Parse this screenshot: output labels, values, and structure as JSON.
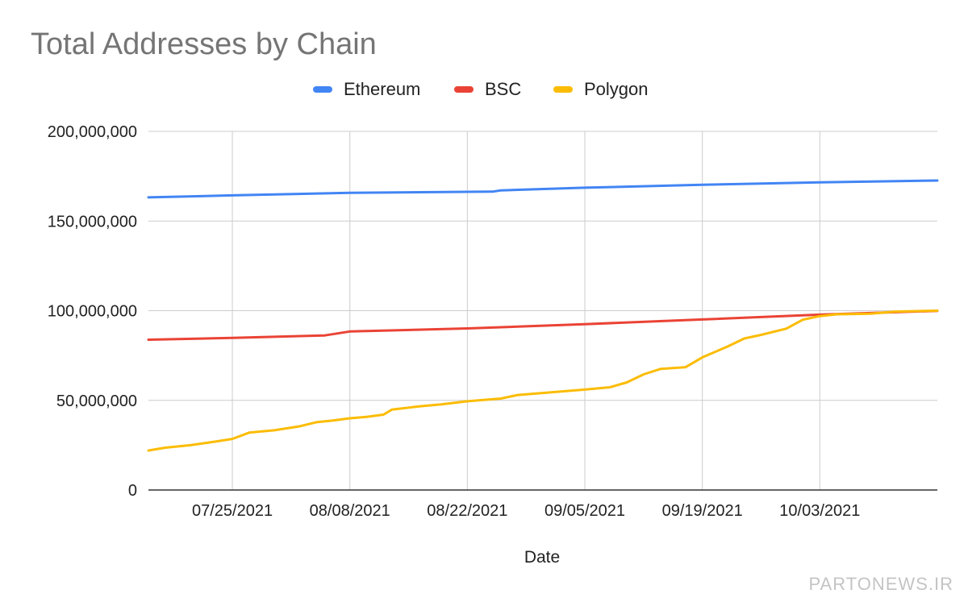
{
  "chart_data": {
    "type": "line",
    "title": "Total Addresses by Chain",
    "xlabel": "Date",
    "ylabel": "",
    "ylim": [
      0,
      200000000
    ],
    "yticks": [
      0,
      50000000,
      100000000,
      150000000,
      200000000
    ],
    "ytick_labels": [
      "0",
      "50,000,000",
      "100,000,000",
      "150,000,000",
      "200,000,000"
    ],
    "xlim": [
      "2021-07-15",
      "2021-10-17"
    ],
    "xticks": [
      "2021-07-25",
      "2021-08-08",
      "2021-08-22",
      "2021-09-05",
      "2021-09-19",
      "2021-10-03"
    ],
    "xtick_labels": [
      "07/25/2021",
      "08/08/2021",
      "08/22/2021",
      "09/05/2021",
      "09/19/2021",
      "10/03/2021"
    ],
    "grid": true,
    "legend_position": "top-center",
    "series": [
      {
        "name": "Ethereum",
        "color": "#4285f4",
        "points": [
          [
            "2021-07-15",
            163200000
          ],
          [
            "2021-07-25",
            164300000
          ],
          [
            "2021-08-08",
            165700000
          ],
          [
            "2021-08-22",
            166300000
          ],
          [
            "2021-08-25",
            166400000
          ],
          [
            "2021-08-26",
            167100000
          ],
          [
            "2021-09-05",
            168600000
          ],
          [
            "2021-09-19",
            170200000
          ],
          [
            "2021-10-03",
            171600000
          ],
          [
            "2021-10-17",
            172600000
          ]
        ]
      },
      {
        "name": "BSC",
        "color": "#ea4335",
        "points": [
          [
            "2021-07-15",
            83800000
          ],
          [
            "2021-07-25",
            84800000
          ],
          [
            "2021-08-05",
            86200000
          ],
          [
            "2021-08-08",
            88400000
          ],
          [
            "2021-08-22",
            90100000
          ],
          [
            "2021-09-05",
            92500000
          ],
          [
            "2021-09-19",
            95100000
          ],
          [
            "2021-10-03",
            97800000
          ],
          [
            "2021-10-17",
            99900000
          ]
        ]
      },
      {
        "name": "Polygon",
        "color": "#fbbc04",
        "points": [
          [
            "2021-07-15",
            22000000
          ],
          [
            "2021-07-17",
            23600000
          ],
          [
            "2021-07-20",
            25000000
          ],
          [
            "2021-07-23",
            27000000
          ],
          [
            "2021-07-25",
            28500000
          ],
          [
            "2021-07-27",
            32000000
          ],
          [
            "2021-07-30",
            33300000
          ],
          [
            "2021-08-02",
            35500000
          ],
          [
            "2021-08-04",
            37800000
          ],
          [
            "2021-08-06",
            38800000
          ],
          [
            "2021-08-08",
            40000000
          ],
          [
            "2021-08-10",
            40800000
          ],
          [
            "2021-08-12",
            42000000
          ],
          [
            "2021-08-13",
            44800000
          ],
          [
            "2021-08-16",
            46500000
          ],
          [
            "2021-08-19",
            47800000
          ],
          [
            "2021-08-22",
            49500000
          ],
          [
            "2021-08-26",
            51000000
          ],
          [
            "2021-08-28",
            53000000
          ],
          [
            "2021-09-01",
            54500000
          ],
          [
            "2021-09-05",
            56000000
          ],
          [
            "2021-09-08",
            57300000
          ],
          [
            "2021-09-10",
            60000000
          ],
          [
            "2021-09-12",
            64500000
          ],
          [
            "2021-09-14",
            67500000
          ],
          [
            "2021-09-17",
            68500000
          ],
          [
            "2021-09-19",
            74000000
          ],
          [
            "2021-09-22",
            80000000
          ],
          [
            "2021-09-24",
            84500000
          ],
          [
            "2021-09-26",
            86500000
          ],
          [
            "2021-09-29",
            90000000
          ],
          [
            "2021-10-01",
            95000000
          ],
          [
            "2021-10-03",
            97000000
          ],
          [
            "2021-10-05",
            98000000
          ],
          [
            "2021-10-09",
            98300000
          ],
          [
            "2021-10-12",
            99500000
          ],
          [
            "2021-10-17",
            100000000
          ]
        ]
      }
    ]
  },
  "watermark": "PARTONEWS.IR"
}
